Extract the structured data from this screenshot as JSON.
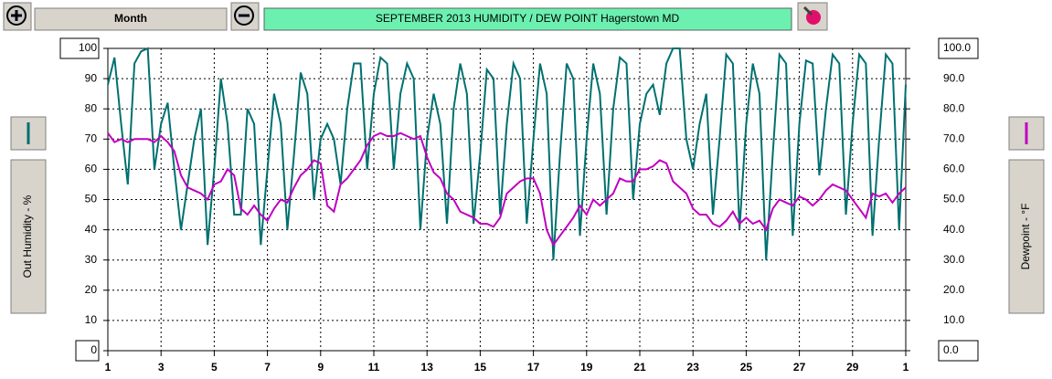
{
  "chart_data": {
    "type": "line",
    "title": "SEPTEMBER  2013  HUMIDITY / DEW POINT  Hagerstown MD",
    "period": "Month",
    "ylabel": "Out Humidity - %",
    "y2label": "Dewpoint - °F",
    "x": [
      1,
      1.25,
      1.5,
      1.75,
      2,
      2.25,
      2.5,
      2.75,
      3,
      3.25,
      3.5,
      3.75,
      4,
      4.25,
      4.5,
      4.75,
      5,
      5.25,
      5.5,
      5.75,
      6,
      6.25,
      6.5,
      6.75,
      7,
      7.25,
      7.5,
      7.75,
      8,
      8.25,
      8.5,
      8.75,
      9,
      9.25,
      9.5,
      9.75,
      10,
      10.25,
      10.5,
      10.75,
      11,
      11.25,
      11.5,
      11.75,
      12,
      12.25,
      12.5,
      12.75,
      13,
      13.25,
      13.5,
      13.75,
      14,
      14.25,
      14.5,
      14.75,
      15,
      15.25,
      15.5,
      15.75,
      16,
      16.25,
      16.5,
      16.75,
      17,
      17.25,
      17.5,
      17.75,
      18,
      18.25,
      18.5,
      18.75,
      19,
      19.25,
      19.5,
      19.75,
      20,
      20.25,
      20.5,
      20.75,
      21,
      21.25,
      21.5,
      21.75,
      22,
      22.25,
      22.5,
      22.75,
      23,
      23.25,
      23.5,
      23.75,
      24,
      24.25,
      24.5,
      24.75,
      25,
      25.25,
      25.5,
      25.75,
      26,
      26.25,
      26.5,
      26.75,
      27,
      27.25,
      27.5,
      27.75,
      28,
      28.25,
      28.5,
      28.75,
      29,
      29.25,
      29.5,
      29.75,
      30,
      30.25,
      30.5,
      30.75,
      31
    ],
    "series": [
      {
        "color": "#007070",
        "values": [
          88,
          97,
          75,
          55,
          95,
          99,
          100,
          60,
          75,
          82,
          60,
          40,
          55,
          70,
          80,
          35,
          60,
          90,
          75,
          45,
          45,
          80,
          75,
          35,
          60,
          85,
          75,
          40,
          65,
          92,
          85,
          50,
          70,
          75,
          70,
          55,
          80,
          95,
          95,
          60,
          85,
          97,
          95,
          60,
          85,
          95,
          90,
          40,
          70,
          85,
          75,
          42,
          80,
          95,
          85,
          42,
          65,
          93,
          90,
          45,
          75,
          95,
          90,
          42,
          70,
          95,
          85,
          30,
          65,
          95,
          90,
          38,
          70,
          95,
          85,
          45,
          80,
          97,
          95,
          50,
          75,
          85,
          88,
          78,
          95,
          100,
          100,
          70,
          60,
          75,
          85,
          45,
          70,
          98,
          95,
          40,
          75,
          95,
          85,
          30,
          65,
          98,
          95,
          38,
          75,
          96,
          95,
          58,
          80,
          98,
          95,
          45,
          75,
          98,
          95,
          38,
          70,
          98,
          95,
          40,
          88
        ]
      },
      {
        "color": "#c000c0",
        "axis": "y2",
        "values": [
          72,
          69,
          70,
          69,
          70,
          70,
          70,
          69,
          71,
          69,
          66,
          58,
          54,
          53,
          52,
          50,
          55,
          56,
          60,
          58,
          47,
          45,
          48,
          45,
          43,
          47,
          50,
          49,
          54,
          58,
          60,
          63,
          62,
          48,
          46,
          55,
          57,
          60,
          63,
          68,
          71,
          72,
          71,
          71,
          72,
          71,
          70,
          71,
          64,
          59,
          57,
          52,
          50,
          46,
          45,
          44,
          42,
          42,
          41,
          44,
          52,
          54,
          56,
          57,
          57,
          52,
          40,
          35,
          38,
          41,
          44,
          48,
          45,
          50,
          48,
          50,
          52,
          57,
          56,
          56,
          60,
          60,
          61,
          63,
          62,
          56,
          54,
          52,
          47,
          45,
          45,
          42,
          41,
          43,
          46,
          42,
          44,
          42,
          43,
          40,
          47,
          50,
          49,
          48,
          51,
          50,
          48,
          50,
          53,
          55,
          54,
          53,
          50,
          47,
          44,
          52,
          51,
          52,
          49,
          52,
          54
        ]
      }
    ],
    "xlim": [
      1,
      31
    ],
    "xticks": [
      1,
      3,
      5,
      7,
      9,
      11,
      13,
      15,
      17,
      19,
      21,
      23,
      25,
      27,
      29,
      {
        "value": 31,
        "label": "1"
      }
    ],
    "ylim": [
      0,
      100
    ],
    "yticks": [
      0,
      10,
      20,
      30,
      40,
      50,
      60,
      70,
      80,
      90,
      100
    ],
    "y2lim": [
      0,
      100
    ],
    "y2ticks": [
      {
        "value": 0,
        "label": "0.0"
      },
      {
        "value": 10,
        "label": "10.0"
      },
      {
        "value": 20,
        "label": "20.0"
      },
      {
        "value": 30,
        "label": "30.0"
      },
      {
        "value": 40,
        "label": "40.0"
      },
      {
        "value": 50,
        "label": "50.0"
      },
      {
        "value": 60,
        "label": "60.0"
      },
      {
        "value": 70,
        "label": "70.0"
      },
      {
        "value": 80,
        "label": "80.0"
      },
      {
        "value": 90,
        "label": "90.0"
      },
      {
        "value": 100,
        "label": "100.0"
      }
    ],
    "grid": true
  }
}
